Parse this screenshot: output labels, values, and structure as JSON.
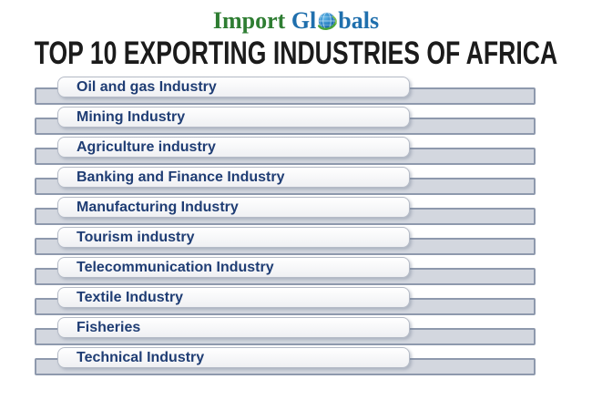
{
  "logo": {
    "part_import": "Import ",
    "part_gl": "Gl",
    "part_bals": "bals",
    "green_color": "#2e7d32",
    "blue_color": "#1f6fad",
    "globe_icon": "globe-icon"
  },
  "title": {
    "text": "TOP 10 EXPORTING INDUSTRIES OF AFRICA",
    "color": "#1b1b1b"
  },
  "list": {
    "items": [
      {
        "label": "Oil and gas Industry"
      },
      {
        "label": "Mining Industry"
      },
      {
        "label": "Agriculture industry"
      },
      {
        "label": "Banking and Finance Industry"
      },
      {
        "label": "Manufacturing Industry"
      },
      {
        "label": "Tourism industry"
      },
      {
        "label": "Telecommunication Industry"
      },
      {
        "label": "Textile Industry"
      },
      {
        "label": "Fisheries"
      },
      {
        "label": "Technical Industry"
      }
    ],
    "colors": {
      "bar_fill": "#d3d7df",
      "bar_border": "#8e99ad",
      "box_fill": "#ffffff",
      "box_border": "#b4bac6",
      "label_color": "#1f3d74"
    }
  }
}
